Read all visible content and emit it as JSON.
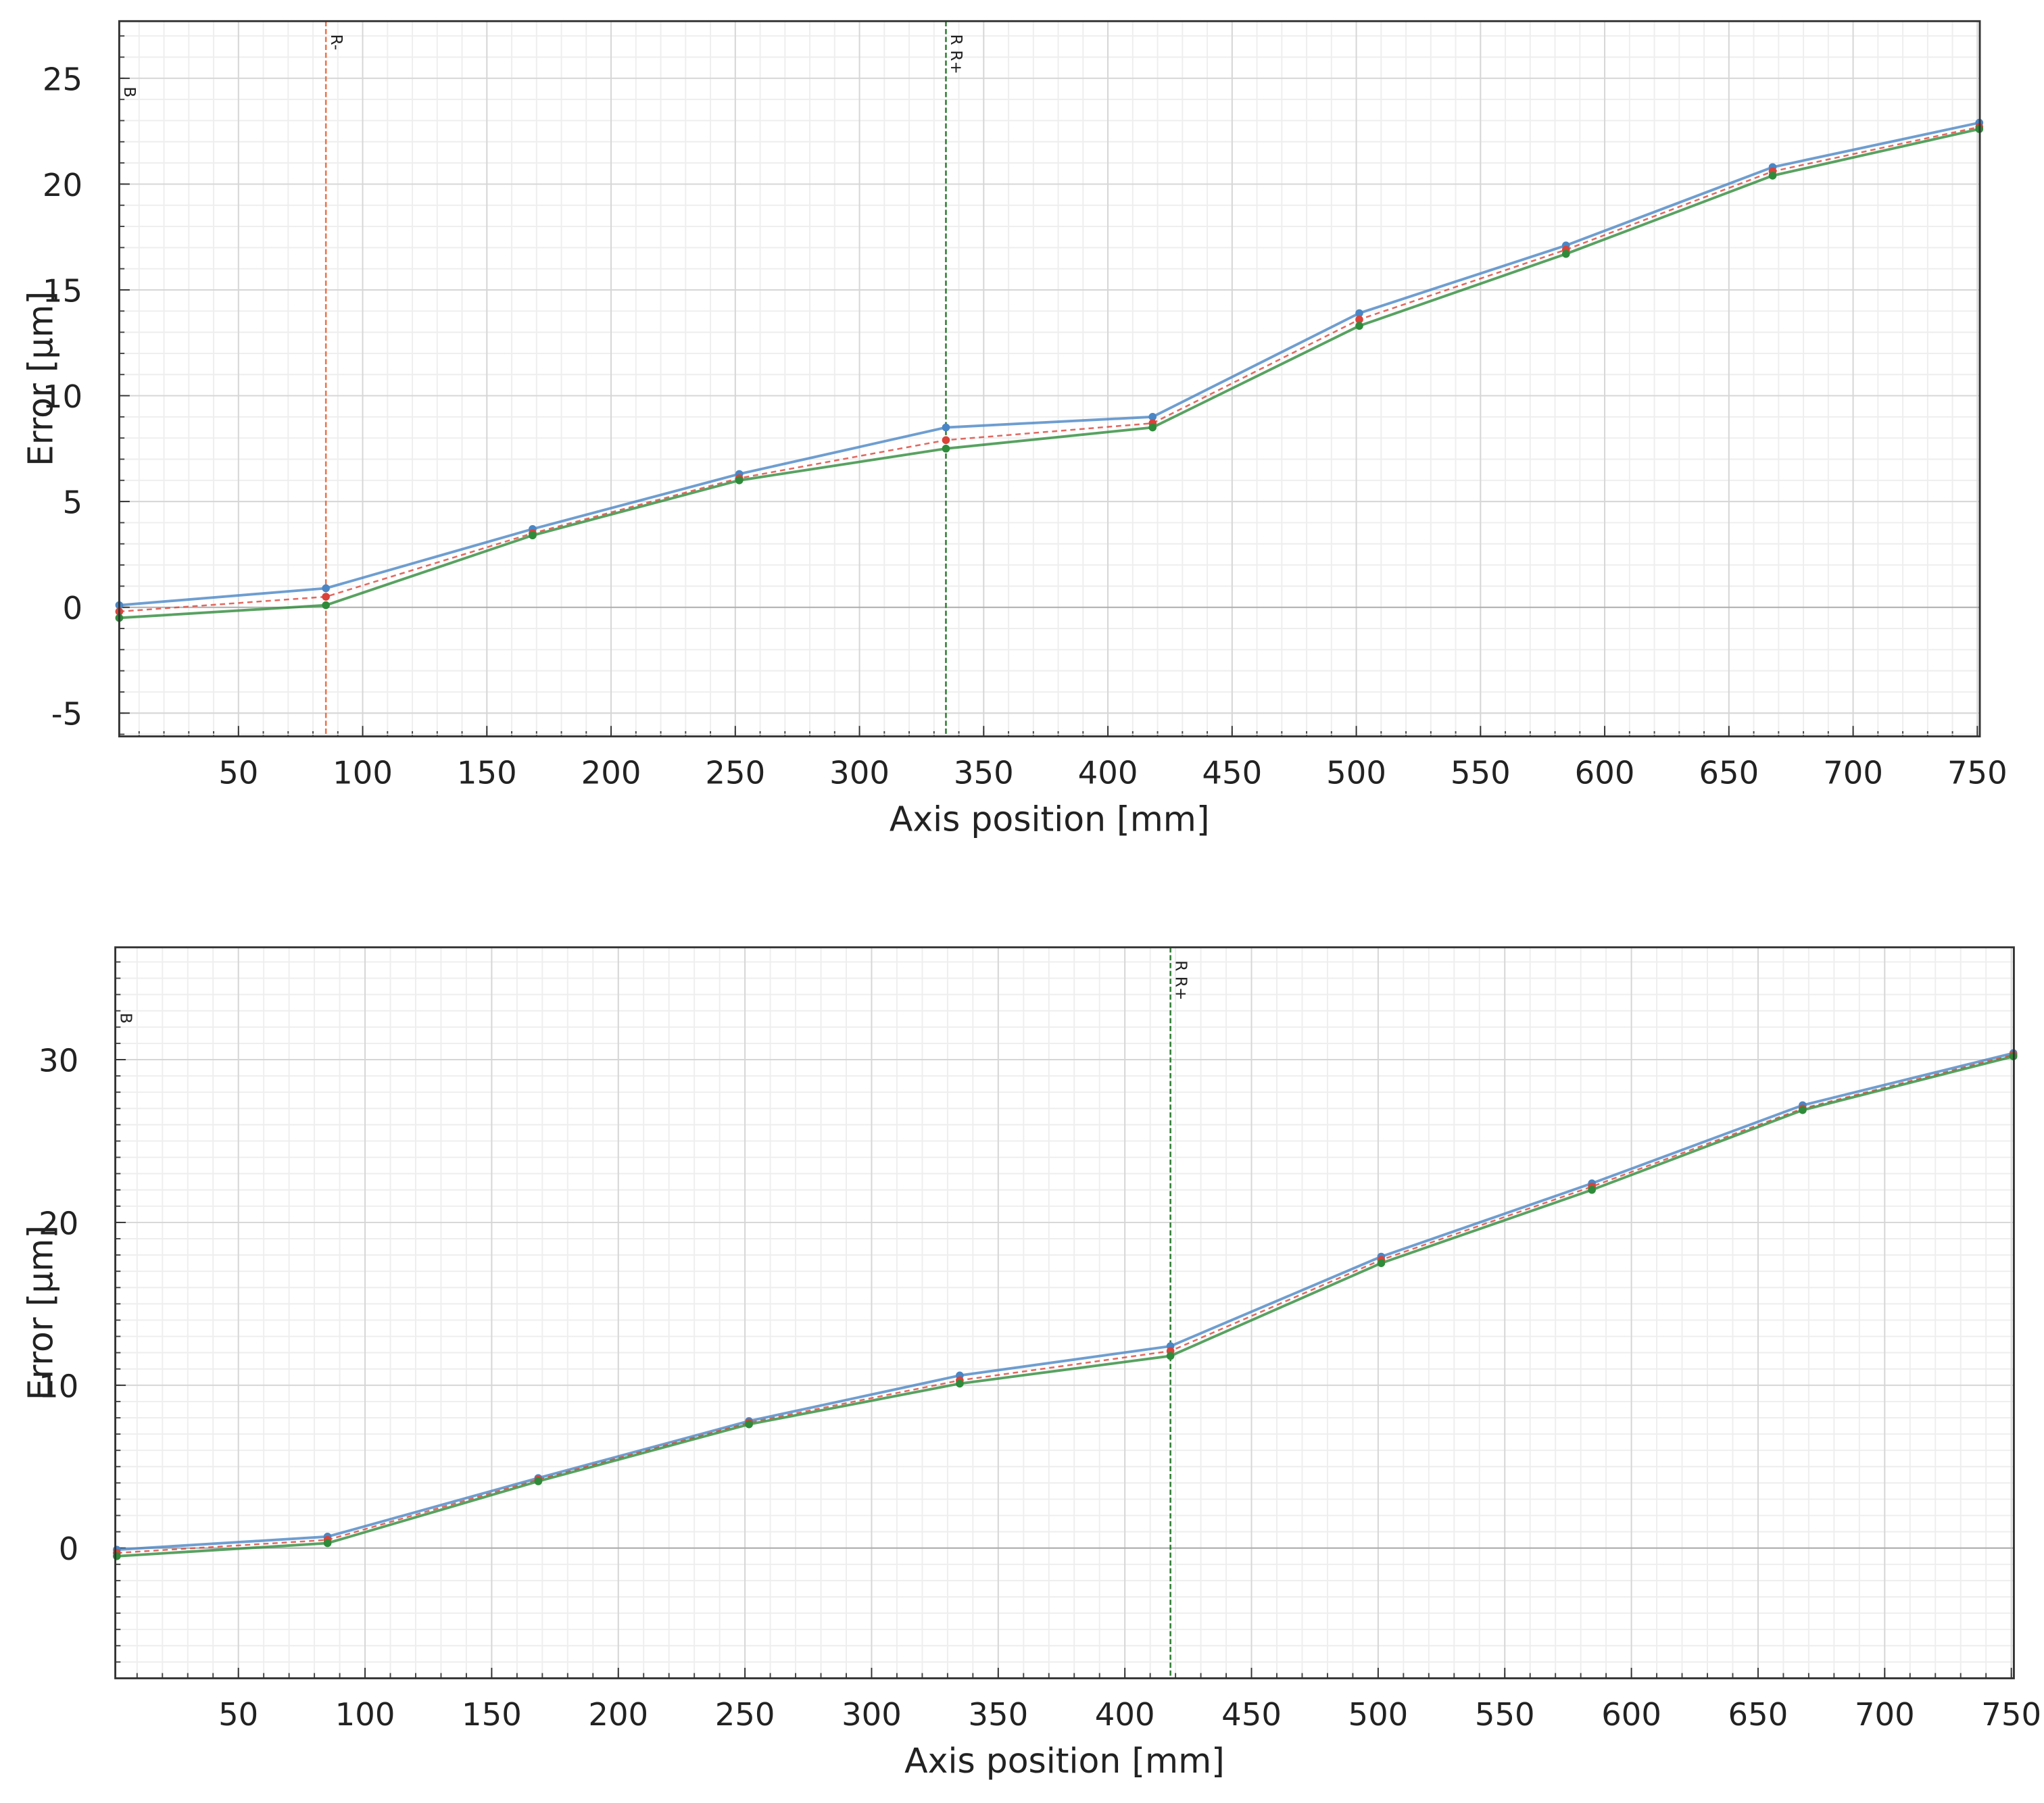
{
  "chart_data": [
    {
      "type": "line",
      "y_label": "Error [µm]",
      "x_label": "Axis position [mm]",
      "x": [
        2,
        85.2,
        168.4,
        251.6,
        334.8,
        418,
        501.2,
        584.4,
        667.6,
        750.8
      ],
      "series": [
        {
          "color": "#4a86c5",
          "style": "solid",
          "values": [
            0.1,
            0.9,
            3.7,
            6.3,
            8.5,
            9.0,
            13.9,
            17.1,
            20.8,
            22.9
          ]
        },
        {
          "color": "#d9433a",
          "style": "dashed",
          "values": [
            -0.2,
            0.5,
            3.5,
            6.1,
            7.9,
            8.7,
            13.6,
            16.9,
            20.6,
            22.7
          ]
        },
        {
          "color": "#2e8b3a",
          "style": "solid",
          "values": [
            -0.5,
            0.1,
            3.4,
            6.0,
            7.5,
            8.5,
            13.3,
            16.7,
            20.4,
            22.6
          ]
        }
      ],
      "markers": [
        {
          "x": 2,
          "label": "B",
          "color": "#888888"
        },
        {
          "x": 85.2,
          "label": "R-",
          "color": "#e8734a"
        },
        {
          "x": 334.8,
          "label": "R R+",
          "color": "#2e7d32"
        }
      ],
      "xlim": [
        2,
        751
      ],
      "ylim": [
        -6.1,
        27.7
      ],
      "xticks": [
        50,
        100,
        150,
        200,
        250,
        300,
        350,
        400,
        450,
        500,
        550,
        600,
        650,
        700,
        750
      ],
      "yticks": [
        -5,
        0,
        5,
        10,
        15,
        20,
        25
      ],
      "grid": true,
      "minor_grid": {
        "x": 10,
        "y": 1
      }
    },
    {
      "type": "line",
      "y_label": "Error [µm]",
      "x_label": "Axis position [mm]",
      "x": [
        2,
        85.2,
        168.4,
        251.6,
        334.8,
        418,
        501.2,
        584.4,
        667.6,
        750.8
      ],
      "series": [
        {
          "color": "#4a86c5",
          "style": "solid",
          "values": [
            -0.1,
            0.7,
            4.3,
            7.8,
            10.6,
            12.4,
            17.9,
            22.4,
            27.2,
            30.4
          ]
        },
        {
          "color": "#d9433a",
          "style": "dashed",
          "values": [
            -0.3,
            0.5,
            4.2,
            7.7,
            10.3,
            12.1,
            17.7,
            22.2,
            27.0,
            30.3
          ]
        },
        {
          "color": "#2e8b3a",
          "style": "solid",
          "values": [
            -0.5,
            0.3,
            4.1,
            7.6,
            10.1,
            11.8,
            17.5,
            22.0,
            26.9,
            30.2
          ]
        }
      ],
      "markers": [
        {
          "x": 1.4,
          "label": "B",
          "color": "#888888"
        },
        {
          "x": 418,
          "label": "R R+",
          "color": "#2e7d32"
        }
      ],
      "xlim": [
        1.4,
        751
      ],
      "ylim": [
        -8.0,
        36.9
      ],
      "xticks": [
        50,
        100,
        150,
        200,
        250,
        300,
        350,
        400,
        450,
        500,
        550,
        600,
        650,
        700,
        750
      ],
      "yticks": [
        0,
        10,
        20,
        30
      ],
      "grid": true,
      "minor_grid": {
        "x": 10,
        "y": 1
      }
    }
  ]
}
